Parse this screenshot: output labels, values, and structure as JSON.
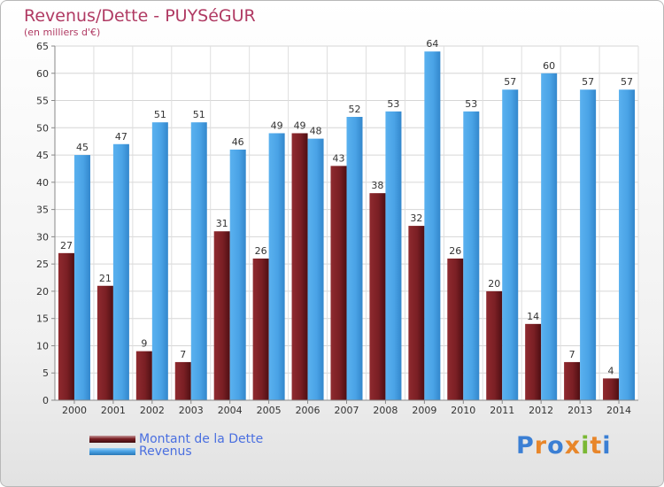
{
  "title": "Revenus/Dette - PUYSéGUR",
  "subtitle": "(en milliers d'€)",
  "brand": "Proxiti",
  "colors": {
    "debt": "#7a1f24",
    "revenue": "#4aa3e6",
    "title": "#b03a63",
    "legend_text": "#4a6fe0"
  },
  "chart_data": {
    "type": "bar",
    "title": "Revenus/Dette - PUYSéGUR",
    "ylabel": "(en milliers d'€)",
    "xlabel": "",
    "categories": [
      "2000",
      "2001",
      "2002",
      "2003",
      "2004",
      "2005",
      "2006",
      "2007",
      "2008",
      "2009",
      "2010",
      "2011",
      "2012",
      "2013",
      "2014"
    ],
    "series": [
      {
        "name": "Montant de la Dette",
        "values": [
          27,
          21,
          9,
          7,
          31,
          26,
          49,
          43,
          38,
          32,
          26,
          20,
          14,
          7,
          4
        ]
      },
      {
        "name": "Revenus",
        "values": [
          45,
          47,
          51,
          51,
          46,
          49,
          48,
          52,
          53,
          64,
          53,
          57,
          60,
          57,
          57
        ]
      }
    ],
    "ylim": [
      0,
      65
    ],
    "yticks": [
      0,
      5,
      10,
      15,
      20,
      25,
      30,
      35,
      40,
      45,
      50,
      55,
      60,
      65
    ],
    "grid": true,
    "legend": "bottom-left"
  }
}
